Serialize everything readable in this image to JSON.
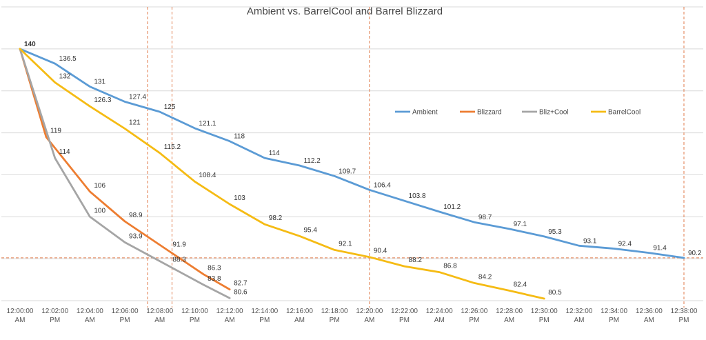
{
  "chart_data": {
    "type": "line",
    "title": "Ambient vs. BarrelCool and Barrel Blizzard",
    "xlabel": "",
    "ylabel": "",
    "grid": "horizontal",
    "legend_position": "right-center",
    "x_categories": [
      [
        "12:00:00",
        "AM"
      ],
      [
        "12:02:00",
        "PM"
      ],
      [
        "12:04:00",
        "AM"
      ],
      [
        "12:06:00",
        "PM"
      ],
      [
        "12:08:00",
        "AM"
      ],
      [
        "12:10:00",
        "PM"
      ],
      [
        "12:12:00",
        "AM"
      ],
      [
        "12:14:00",
        "PM"
      ],
      [
        "12:16:00",
        "AM"
      ],
      [
        "12:18:00",
        "PM"
      ],
      [
        "12:20:00",
        "AM"
      ],
      [
        "12:22:00",
        "PM"
      ],
      [
        "12:24:00",
        "AM"
      ],
      [
        "12:26:00",
        "PM"
      ],
      [
        "12:28:00",
        "AM"
      ],
      [
        "12:30:00",
        "PM"
      ],
      [
        "12:32:00",
        "AM"
      ],
      [
        "12:34:00",
        "PM"
      ],
      [
        "12:36:00",
        "AM"
      ],
      [
        "12:38:00",
        "PM"
      ]
    ],
    "x_range_minutes": [
      0,
      38
    ],
    "y_range": [
      80,
      150
    ],
    "y_gridlines": [
      80,
      90,
      100,
      110,
      120,
      130,
      140,
      150
    ],
    "series": [
      {
        "name": "Ambient",
        "color": "#5b9bd5",
        "points": [
          [
            0,
            140
          ],
          [
            2,
            136.5
          ],
          [
            4,
            131
          ],
          [
            6,
            127.4
          ],
          [
            8,
            125
          ],
          [
            10,
            121.1
          ],
          [
            12,
            118
          ],
          [
            14,
            114
          ],
          [
            16,
            112.2
          ],
          [
            18,
            109.7
          ],
          [
            20,
            106.4
          ],
          [
            22,
            103.8
          ],
          [
            24,
            101.2
          ],
          [
            26,
            98.7
          ],
          [
            28,
            97.1
          ],
          [
            30,
            95.3
          ],
          [
            32,
            93.1
          ],
          [
            34,
            92.4
          ],
          [
            36,
            91.4
          ],
          [
            38,
            90.2
          ]
        ],
        "labels": [
          "140",
          "136.5",
          "131",
          "127.4",
          "125",
          "121.1",
          "118",
          "114",
          "112.2",
          "109.7",
          "106.4",
          "103.8",
          "101.2",
          "98.7",
          "97.1",
          "95.3",
          "93.1",
          "92.4",
          "91.4",
          "90.2"
        ]
      },
      {
        "name": "Blizzard",
        "color": "#ed7d31",
        "points": [
          [
            0,
            140
          ],
          [
            1.5,
            119
          ],
          [
            4,
            106
          ],
          [
            6,
            98.9
          ],
          [
            8.5,
            91.9
          ],
          [
            10.5,
            86.3
          ],
          [
            12,
            82.7
          ]
        ],
        "labels": [
          "140",
          "119",
          "106",
          "98.9",
          "91.9",
          "86.3",
          "82.7"
        ]
      },
      {
        "name": "Bliz+Cool",
        "color": "#a5a5a5",
        "points": [
          [
            0,
            140
          ],
          [
            2,
            114
          ],
          [
            4,
            100
          ],
          [
            6,
            93.9
          ],
          [
            8.5,
            88.3
          ],
          [
            10.5,
            83.8
          ],
          [
            12,
            80.6
          ]
        ],
        "labels": [
          "140",
          "114",
          "100",
          "93.9",
          "88.3",
          "83.8",
          "80.6"
        ]
      },
      {
        "name": "BarrelCool",
        "color": "#f5bb14",
        "points": [
          [
            0,
            140
          ],
          [
            2,
            132
          ],
          [
            4,
            126.3
          ],
          [
            6,
            121
          ],
          [
            8,
            115.2
          ],
          [
            10,
            108.4
          ],
          [
            12,
            103
          ],
          [
            14,
            98.2
          ],
          [
            16,
            95.4
          ],
          [
            18,
            92.1
          ],
          [
            20,
            90.4
          ],
          [
            22,
            88.2
          ],
          [
            24,
            86.8
          ],
          [
            26,
            84.2
          ],
          [
            28,
            82.4
          ],
          [
            30,
            80.5
          ]
        ],
        "labels": [
          "140",
          "132",
          "126.3",
          "121",
          "115.2",
          "108.4",
          "103",
          "98.2",
          "95.4",
          "92.1",
          "90.4",
          "88.2",
          "86.8",
          "84.2",
          "82.4",
          "80.5"
        ]
      }
    ],
    "reference_lines": {
      "vertical_minutes": [
        7.3,
        8.7,
        20,
        38
      ],
      "horizontal_value": 90.2,
      "color": "#e07a4a",
      "style": "dashed"
    }
  }
}
